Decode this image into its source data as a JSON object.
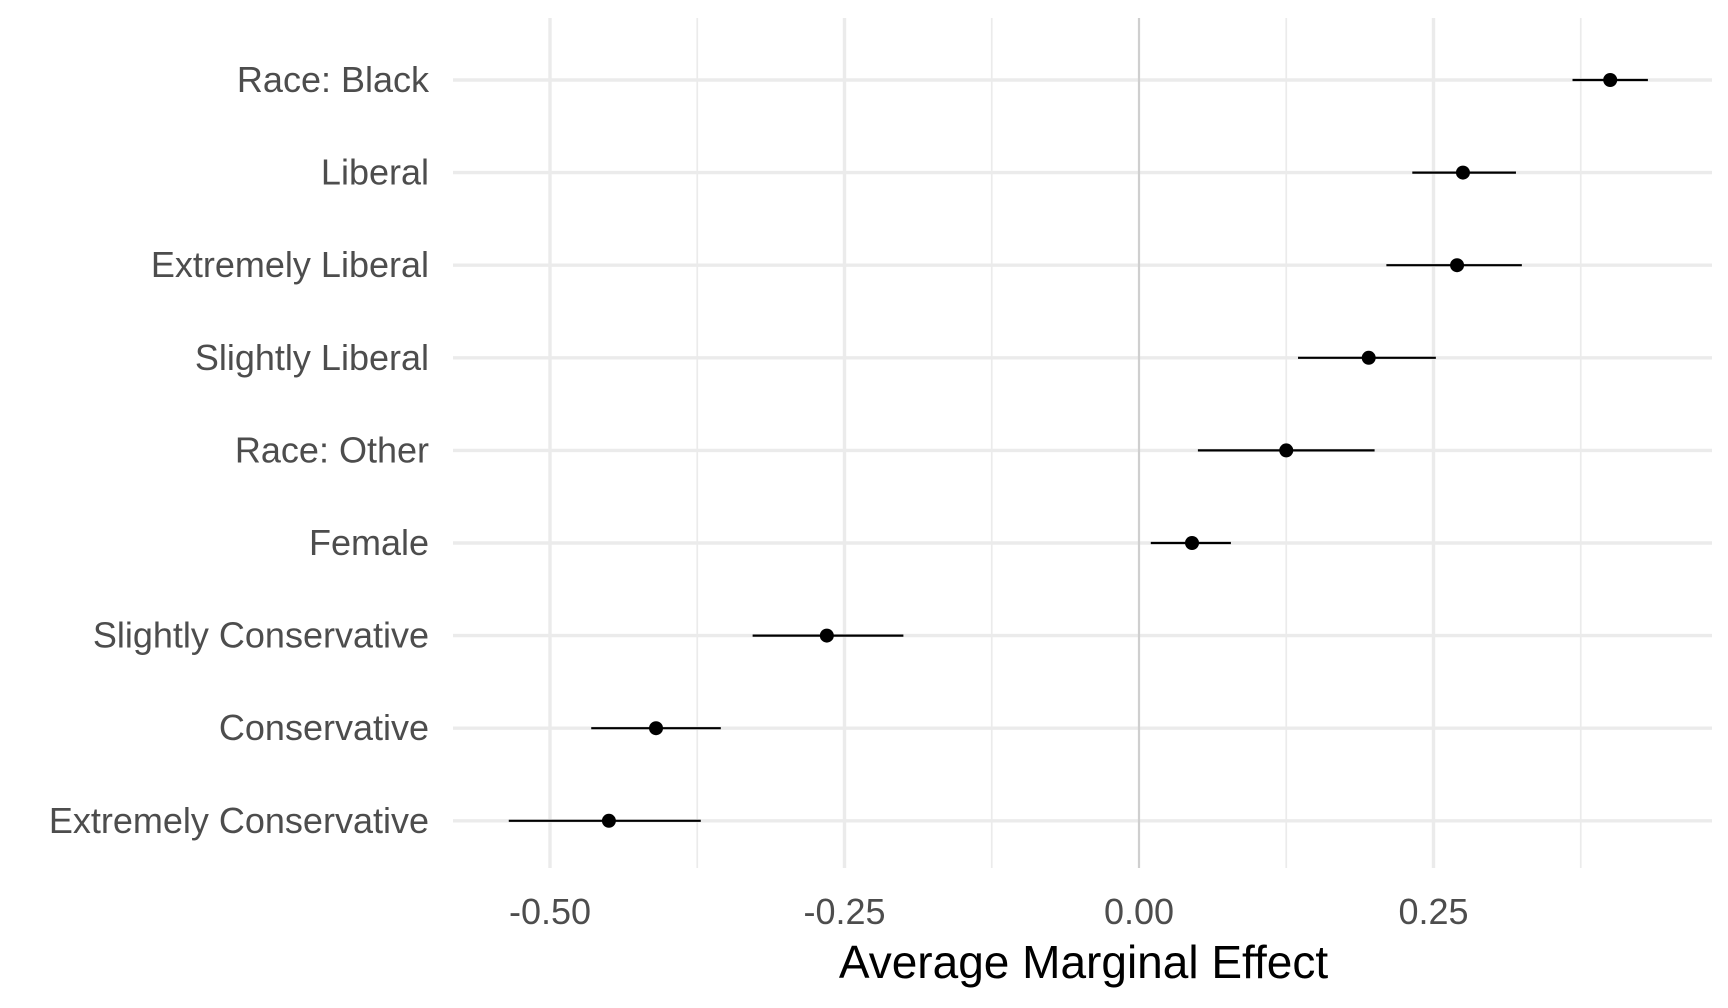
{
  "chart_data": {
    "type": "scatter",
    "subtype": "coefficient-plot",
    "title": "",
    "xlabel": "Average Marginal Effect",
    "ylabel": "",
    "xlim": [
      -0.6,
      0.4
    ],
    "x_ticks": [
      {
        "value": -0.5,
        "label": "-0.50"
      },
      {
        "value": -0.25,
        "label": "-0.25"
      },
      {
        "value": 0.0,
        "label": "0.00"
      },
      {
        "value": 0.25,
        "label": "0.25"
      }
    ],
    "minor_grid": [
      -0.375,
      -0.125,
      0.125,
      0.375
    ],
    "reference_line": 0.0,
    "grid": true,
    "legend": "none",
    "point_color": "#000000",
    "categories": [
      "Race: Black",
      "Liberal",
      "Extremely Liberal",
      "Slightly Liberal",
      "Race: Other",
      "Female",
      "Slightly Conservative",
      "Conservative",
      "Extremely Conservative"
    ],
    "estimates": [
      0.4,
      0.275,
      0.27,
      0.195,
      0.125,
      0.045,
      -0.265,
      -0.41,
      -0.45
    ],
    "ci_low": [
      0.368,
      0.232,
      0.21,
      0.135,
      0.05,
      0.01,
      -0.328,
      -0.465,
      -0.535
    ],
    "ci_high": [
      0.432,
      0.32,
      0.325,
      0.252,
      0.2,
      0.078,
      -0.2,
      -0.355,
      -0.372
    ]
  }
}
